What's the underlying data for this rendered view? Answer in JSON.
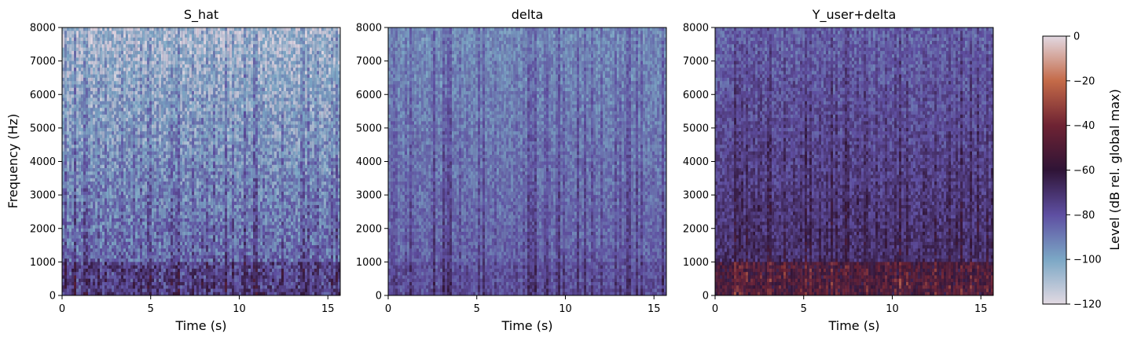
{
  "chart_data": [
    {
      "type": "heatmap",
      "title": "S_hat",
      "xlabel": "Time (s)",
      "ylabel": "Frequency (Hz)",
      "xlim": [
        0,
        15.7
      ],
      "ylim": [
        0,
        8000
      ],
      "xticks": [
        "0",
        "5",
        "10",
        "15"
      ],
      "xtick_values": [
        0,
        5,
        10,
        15
      ],
      "yticks": [
        "0",
        "1000",
        "2000",
        "3000",
        "4000",
        "5000",
        "6000",
        "7000",
        "8000"
      ],
      "ytick_values": [
        0,
        1000,
        2000,
        3000,
        4000,
        5000,
        6000,
        7000,
        8000
      ],
      "colormap": "twilight_shifted"
    },
    {
      "type": "heatmap",
      "title": "delta",
      "xlabel": "Time (s)",
      "ylabel": "",
      "xlim": [
        0,
        15.7
      ],
      "ylim": [
        0,
        8000
      ],
      "xticks": [
        "0",
        "5",
        "10",
        "15"
      ],
      "xtick_values": [
        0,
        5,
        10,
        15
      ],
      "yticks": [
        "0",
        "1000",
        "2000",
        "3000",
        "4000",
        "5000",
        "6000",
        "7000",
        "8000"
      ],
      "ytick_values": [
        0,
        1000,
        2000,
        3000,
        4000,
        5000,
        6000,
        7000,
        8000
      ],
      "colormap": "twilight_shifted"
    },
    {
      "type": "heatmap",
      "title": "Y_user+delta",
      "xlabel": "Time (s)",
      "ylabel": "",
      "xlim": [
        0,
        15.7
      ],
      "ylim": [
        0,
        8000
      ],
      "xticks": [
        "0",
        "5",
        "10",
        "15"
      ],
      "xtick_values": [
        0,
        5,
        10,
        15
      ],
      "yticks": [
        "0",
        "1000",
        "2000",
        "3000",
        "4000",
        "5000",
        "6000",
        "7000",
        "8000"
      ],
      "ytick_values": [
        0,
        1000,
        2000,
        3000,
        4000,
        5000,
        6000,
        7000,
        8000
      ],
      "colormap": "twilight_shifted"
    }
  ],
  "colorbar": {
    "label": "Level (dB rel. global max)",
    "range": [
      -120,
      0
    ],
    "ticks": [
      "0",
      "−20",
      "−40",
      "−60",
      "−80",
      "−100",
      "−120"
    ],
    "tick_values": [
      0,
      -20,
      -40,
      -60,
      -80,
      -100,
      -120
    ],
    "colors": [
      "#e2d9e2",
      "#7ba7c5",
      "#5e4fa2",
      "#2f1436",
      "#6e2333",
      "#c46a48",
      "#e2d9e2"
    ]
  }
}
